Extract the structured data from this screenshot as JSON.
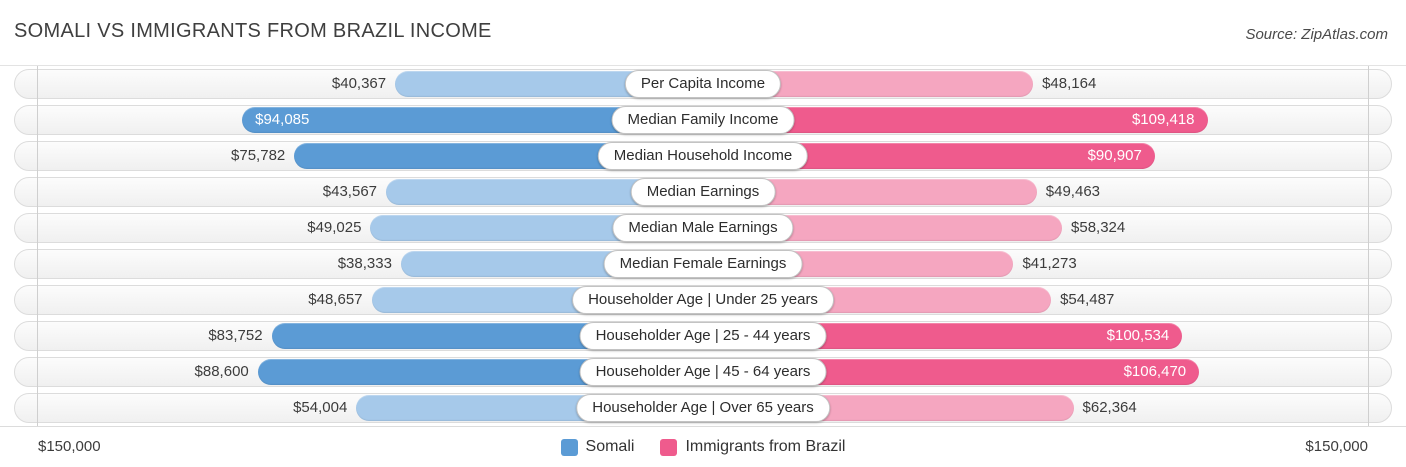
{
  "header": {
    "title": "SOMALI VS IMMIGRANTS FROM BRAZIL INCOME",
    "source": "Source: ZipAtlas.com"
  },
  "colors": {
    "somali_light": "#a6c9ea",
    "somali_dark": "#5b9bd5",
    "brazil_light": "#f5a6c0",
    "brazil_dark": "#ef5b8d",
    "track_border": "#dcdcdc"
  },
  "legend": {
    "items": [
      {
        "label": "Somali",
        "color": "#5b9bd5"
      },
      {
        "label": "Immigrants from Brazil",
        "color": "#ef5b8d"
      }
    ]
  },
  "footer": {
    "left_axis_label": "$150,000",
    "right_axis_label": "$150,000"
  },
  "chart_data": {
    "type": "bar",
    "orientation": "bidirectional-horizontal",
    "title": "SOMALI VS IMMIGRANTS FROM BRAZIL INCOME",
    "xlim": [
      0,
      150000
    ],
    "axis_max_label": "$150,000",
    "grid": "side-axis-lines",
    "legend_position": "bottom-center",
    "categories": [
      "Per Capita Income",
      "Median Family Income",
      "Median Household Income",
      "Median Earnings",
      "Median Male Earnings",
      "Median Female Earnings",
      "Householder Age | Under 25 years",
      "Householder Age | 25 - 44 years",
      "Householder Age | 45 - 64 years",
      "Householder Age | Over 65 years"
    ],
    "series": [
      {
        "name": "Somali",
        "values": [
          40367,
          94085,
          75782,
          43567,
          49025,
          38333,
          48657,
          83752,
          88600,
          54004
        ]
      },
      {
        "name": "Immigrants from Brazil",
        "values": [
          48164,
          109418,
          90907,
          49463,
          58324,
          41273,
          54487,
          100534,
          106470,
          62364
        ]
      }
    ],
    "rows": [
      {
        "category": "Per Capita Income",
        "somali": {
          "value": 40367,
          "label": "$40,367",
          "variant": "light",
          "label_placement": "outside"
        },
        "brazil": {
          "value": 48164,
          "label": "$48,164",
          "variant": "light",
          "label_placement": "outside"
        }
      },
      {
        "category": "Median Family Income",
        "somali": {
          "value": 94085,
          "label": "$94,085",
          "variant": "dark",
          "label_placement": "inside"
        },
        "brazil": {
          "value": 109418,
          "label": "$109,418",
          "variant": "dark",
          "label_placement": "inside"
        }
      },
      {
        "category": "Median Household Income",
        "somali": {
          "value": 75782,
          "label": "$75,782",
          "variant": "dark",
          "label_placement": "outside"
        },
        "brazil": {
          "value": 90907,
          "label": "$90,907",
          "variant": "dark",
          "label_placement": "inside"
        }
      },
      {
        "category": "Median Earnings",
        "somali": {
          "value": 43567,
          "label": "$43,567",
          "variant": "light",
          "label_placement": "outside"
        },
        "brazil": {
          "value": 49463,
          "label": "$49,463",
          "variant": "light",
          "label_placement": "outside"
        }
      },
      {
        "category": "Median Male Earnings",
        "somali": {
          "value": 49025,
          "label": "$49,025",
          "variant": "light",
          "label_placement": "outside"
        },
        "brazil": {
          "value": 58324,
          "label": "$58,324",
          "variant": "light",
          "label_placement": "outside"
        }
      },
      {
        "category": "Median Female Earnings",
        "somali": {
          "value": 38333,
          "label": "$38,333",
          "variant": "light",
          "label_placement": "outside"
        },
        "brazil": {
          "value": 41273,
          "label": "$41,273",
          "variant": "light",
          "label_placement": "outside"
        }
      },
      {
        "category": "Householder Age | Under 25 years",
        "somali": {
          "value": 48657,
          "label": "$48,657",
          "variant": "light",
          "label_placement": "outside"
        },
        "brazil": {
          "value": 54487,
          "label": "$54,487",
          "variant": "light",
          "label_placement": "outside"
        }
      },
      {
        "category": "Householder Age | 25 - 44 years",
        "somali": {
          "value": 83752,
          "label": "$83,752",
          "variant": "dark",
          "label_placement": "outside"
        },
        "brazil": {
          "value": 100534,
          "label": "$100,534",
          "variant": "dark",
          "label_placement": "inside"
        }
      },
      {
        "category": "Householder Age | 45 - 64 years",
        "somali": {
          "value": 88600,
          "label": "$88,600",
          "variant": "dark",
          "label_placement": "outside"
        },
        "brazil": {
          "value": 106470,
          "label": "$106,470",
          "variant": "dark",
          "label_placement": "inside"
        }
      },
      {
        "category": "Householder Age | Over 65 years",
        "somali": {
          "value": 54004,
          "label": "$54,004",
          "variant": "light",
          "label_placement": "outside"
        },
        "brazil": {
          "value": 62364,
          "label": "$62,364",
          "variant": "light",
          "label_placement": "outside"
        }
      }
    ]
  }
}
